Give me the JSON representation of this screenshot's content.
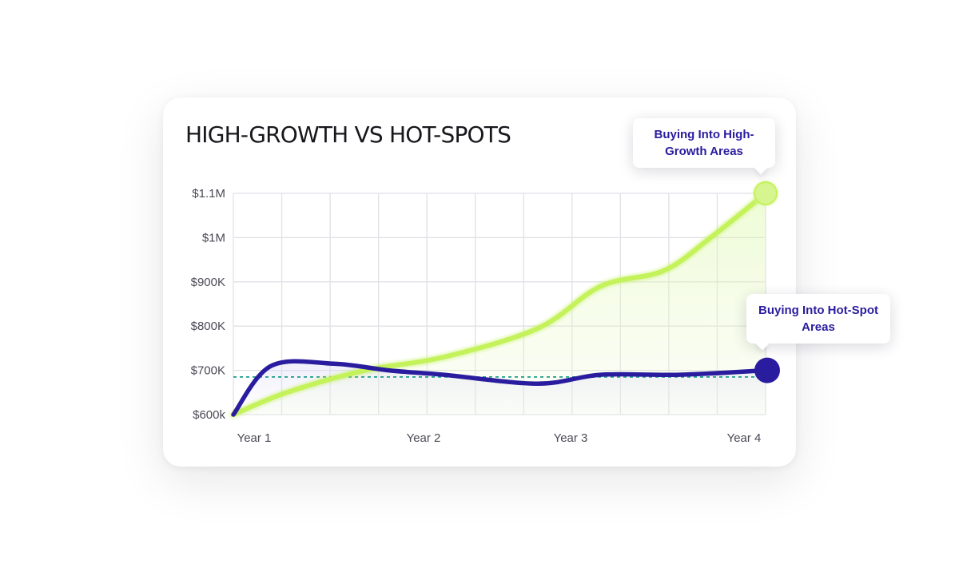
{
  "chart_data": {
    "type": "line",
    "title": "HIGH-GROWTH VS HOT-SPOTS",
    "x_tick_labels": [
      "Year 1",
      "Year 2",
      "Year 3",
      "Year 4"
    ],
    "y_tick_labels": [
      "$600k",
      "$700K",
      "$800K",
      "$900K",
      "$1M",
      "$1.1M"
    ],
    "ylim": [
      600000,
      1100000
    ],
    "xlim": [
      0.66,
      4.05
    ],
    "grid": true,
    "reference_line_value": 685000,
    "series": [
      {
        "name": "Buying Into High-Growth Areas",
        "color": "#c4f25a",
        "x": [
          0.66,
          1.0,
          1.5,
          2.0,
          2.6,
          3.0,
          3.4,
          3.7,
          4.05
        ],
        "y": [
          600000,
          650000,
          700000,
          730000,
          795000,
          890000,
          925000,
          1000000,
          1100000
        ]
      },
      {
        "name": "Buying Into Hot-Spot Areas",
        "color": "#2a1c9e",
        "x": [
          0.66,
          0.9,
          1.3,
          1.65,
          2.0,
          2.6,
          3.0,
          3.5,
          4.05
        ],
        "y": [
          600000,
          710000,
          715000,
          700000,
          690000,
          670000,
          690000,
          690000,
          700000
        ]
      }
    ]
  },
  "callouts": {
    "high_growth": "Buying Into High-Growth Areas",
    "hot_spot": "Buying Into Hot-Spot Areas"
  }
}
